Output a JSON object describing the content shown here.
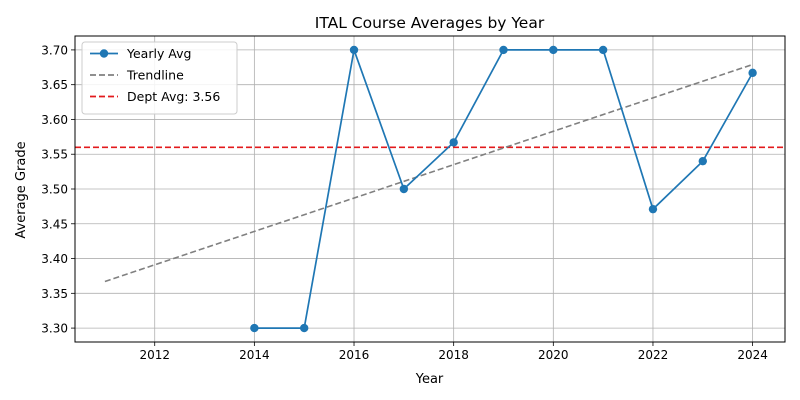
{
  "chart_data": {
    "type": "line",
    "title": "ITAL Course Averages by Year",
    "xlabel": "Year",
    "ylabel": "Average Grade",
    "xlim": [
      2010.4,
      2024.65
    ],
    "ylim": [
      3.28,
      3.72
    ],
    "x_ticks": [
      2012,
      2014,
      2016,
      2018,
      2020,
      2022,
      2024
    ],
    "y_ticks": [
      3.3,
      3.35,
      3.4,
      3.45,
      3.5,
      3.55,
      3.6,
      3.65,
      3.7
    ],
    "grid": true,
    "legend_position": "top-left",
    "series": [
      {
        "name": "Yearly Avg",
        "style": "line-marker",
        "color": "#1f77b4",
        "x": [
          2014,
          2015,
          2016,
          2017,
          2018,
          2019,
          2020,
          2021,
          2022,
          2023,
          2024
        ],
        "y": [
          3.3,
          3.3,
          3.7,
          3.5,
          3.567,
          3.7,
          3.7,
          3.7,
          3.471,
          3.54,
          3.667
        ]
      },
      {
        "name": "Trendline",
        "style": "dashed",
        "color": "#808080",
        "x": [
          2011,
          2024
        ],
        "y": [
          3.367,
          3.679
        ]
      },
      {
        "name": "Dept Avg: 3.56",
        "style": "dashed-hline",
        "color": "#e31a1c",
        "y": 3.56
      }
    ]
  }
}
